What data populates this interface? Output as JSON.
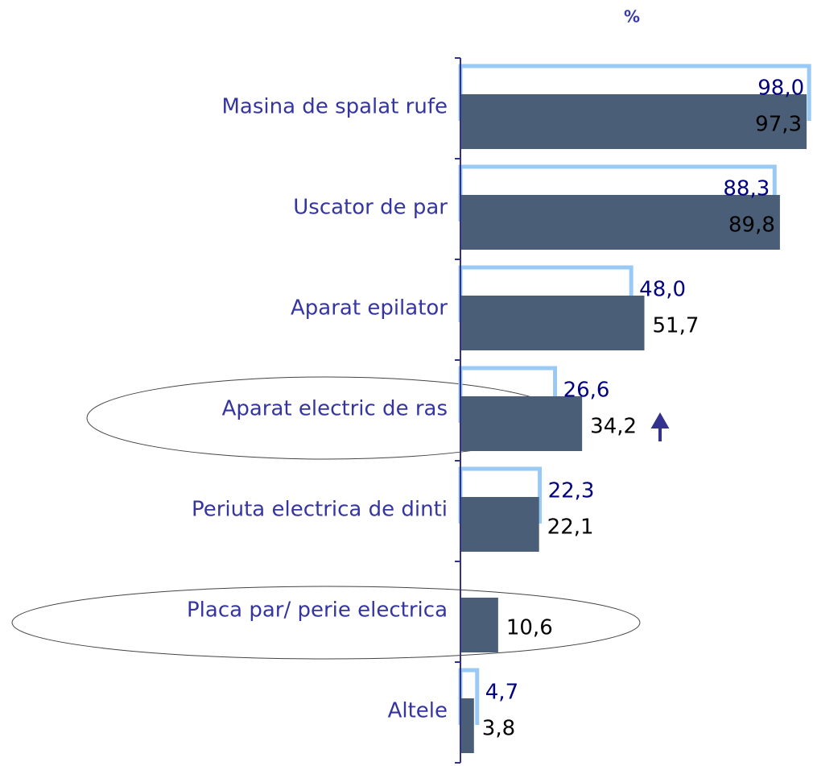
{
  "chart_data": {
    "type": "bar",
    "orientation": "horizontal",
    "title": "%",
    "categories": [
      "Masina de spalat rufe",
      "Uscator de par",
      "Aparat epilator",
      "Aparat electric de ras",
      "Periuta electrica de dinti",
      "Placa par/ perie electrica",
      "Altele"
    ],
    "series": [
      {
        "color": "#99c9f5",
        "style": "outline",
        "values": [
          98.0,
          88.3,
          48.0,
          26.6,
          22.3,
          null,
          4.7
        ],
        "value_labels": [
          "98,0",
          "88,3",
          "48,0",
          "26,6",
          "22,3",
          null,
          "4,7"
        ]
      },
      {
        "color": "#4a5e77",
        "style": "filled",
        "values": [
          97.3,
          89.8,
          51.7,
          34.2,
          22.1,
          10.6,
          3.8
        ],
        "value_labels": [
          "97,3",
          "89,8",
          "51,7",
          "34,2",
          "22,1",
          "10,6",
          "3,8"
        ]
      }
    ],
    "xlim": [
      0,
      100
    ]
  }
}
